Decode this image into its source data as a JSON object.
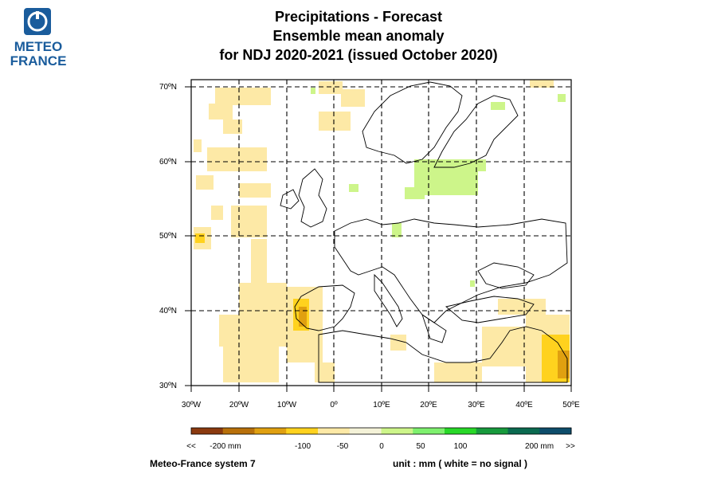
{
  "logo": {
    "line1": "METEO",
    "line2": "FRANCE"
  },
  "title": {
    "line1": "Precipitations   -   Forecast",
    "line2": "Ensemble mean anomaly",
    "line3": "for NDJ 2020-2021   (issued October 2020)"
  },
  "map": {
    "lat_labels": [
      "70ºN",
      "60ºN",
      "50ºN",
      "40ºN",
      "30ºN"
    ],
    "lon_labels": [
      "30ºW",
      "20ºW",
      "10ºW",
      "0º",
      "10ºE",
      "20ºE",
      "30ºE",
      "40ºE",
      "50ºE"
    ],
    "lat_range": [
      30,
      70
    ],
    "lon_range": [
      -30,
      50
    ],
    "grid": true
  },
  "legend": {
    "labels": [
      "<<",
      "-200 mm",
      "-100",
      "-50",
      "0",
      "50",
      "100",
      "200 mm",
      ">>"
    ],
    "colors": [
      "#8b3a0f",
      "#b8700a",
      "#e0a010",
      "#ffd21e",
      "#fde9a6",
      "#f4f2d8",
      "#cdf58a",
      "#7ef06e",
      "#28d828",
      "#179a3c",
      "#0b6a50",
      "#0d4d6b"
    ]
  },
  "footer": {
    "system": "Meteo-France system 7",
    "unit": "unit :  mm   ( white = no signal )"
  },
  "colors": {
    "light_yellow": "#fde9a6",
    "yellow": "#ffd21e",
    "orange": "#e0a010",
    "light_green": "#cdf58a"
  }
}
